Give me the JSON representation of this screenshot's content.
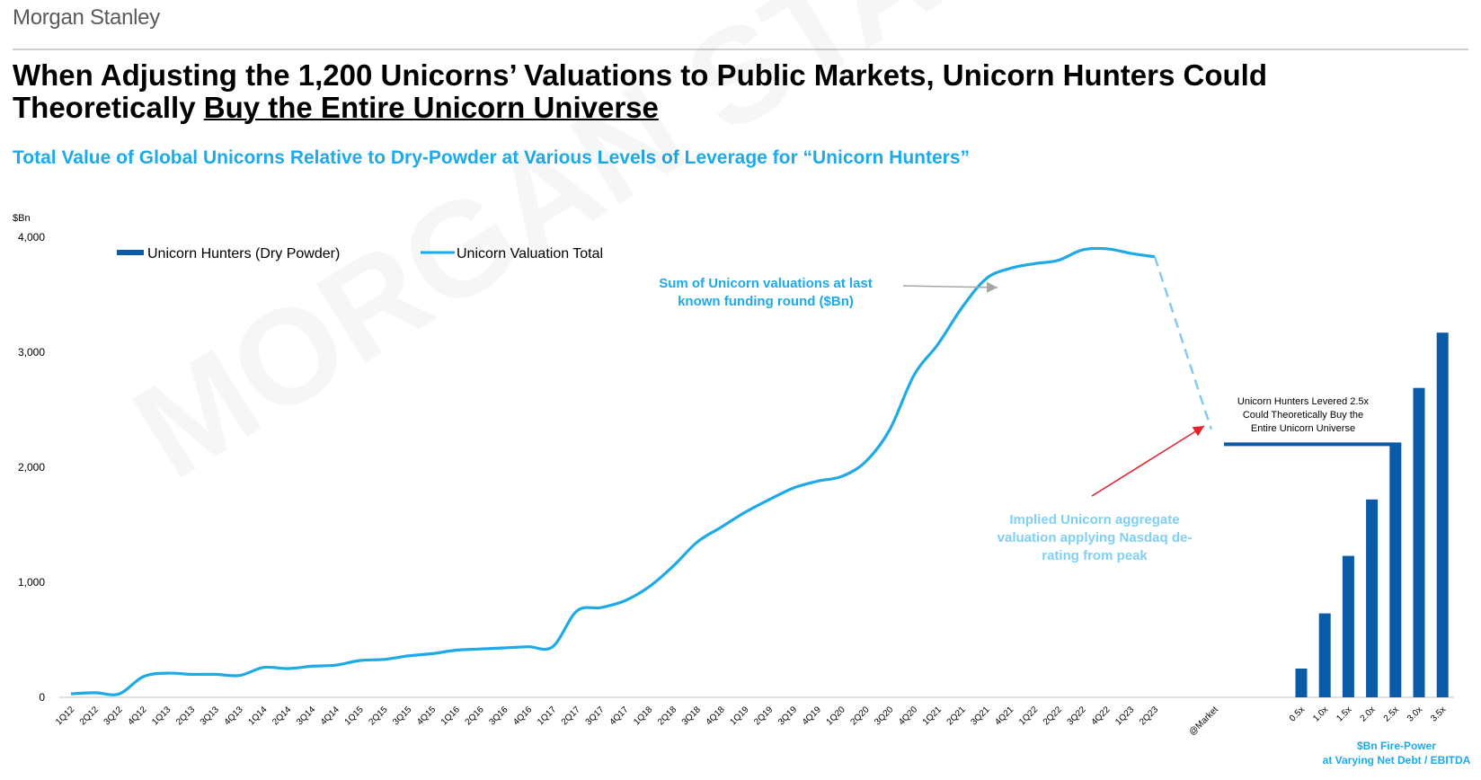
{
  "brand": "Morgan Stanley",
  "title_part1": "When Adjusting the 1,200 Unicorns’ Valuations to Public Markets, Unicorn Hunters Could Theoretically ",
  "title_part2": "Buy the Entire Unicorn Universe",
  "subtitle": "Total Value of Global Unicorns Relative to Dry-Powder at Various Levels of Leverage for “Unicorn Hunters”",
  "watermark": "MORGAN STANLEY",
  "colors": {
    "line": "#1eaae7",
    "bar": "#0a5aa8",
    "dashed": "#7fc8ee",
    "red_arrow": "#e8202a",
    "grey_arrow": "#a6a6a6"
  },
  "chart_data": {
    "type": "line",
    "ylabel": "$Bn",
    "ylim": [
      0,
      4000
    ],
    "yticks": [
      0,
      1000,
      2000,
      3000,
      4000
    ],
    "ytick_labels": [
      "0",
      "1,000",
      "2,000",
      "3,000",
      "4,000"
    ],
    "legend": {
      "bar_label": "Unicorn Hunters (Dry Powder)",
      "line_label": "Unicorn Valuation Total",
      "placement": "top-left"
    },
    "x": [
      "1Q12",
      "2Q12",
      "3Q12",
      "4Q12",
      "1Q13",
      "2Q13",
      "3Q13",
      "4Q13",
      "1Q14",
      "2Q14",
      "3Q14",
      "4Q14",
      "1Q15",
      "2Q15",
      "3Q15",
      "4Q15",
      "1Q16",
      "2Q16",
      "3Q16",
      "4Q16",
      "1Q17",
      "2Q17",
      "3Q17",
      "4Q17",
      "1Q18",
      "2Q18",
      "3Q18",
      "4Q18",
      "1Q19",
      "2Q19",
      "3Q19",
      "4Q19",
      "1Q20",
      "2Q20",
      "3Q20",
      "4Q20",
      "1Q21",
      "2Q21",
      "3Q21",
      "4Q21",
      "1Q22",
      "2Q22",
      "3Q22",
      "4Q22",
      "1Q23",
      "2Q23"
    ],
    "series": [
      {
        "name": "Unicorn Valuation Total",
        "values": [
          30,
          40,
          30,
          180,
          210,
          200,
          200,
          190,
          260,
          250,
          270,
          280,
          320,
          330,
          360,
          380,
          410,
          420,
          430,
          440,
          440,
          750,
          780,
          840,
          960,
          1140,
          1350,
          1480,
          1610,
          1720,
          1820,
          1880,
          1920,
          2050,
          2330,
          2800,
          3070,
          3390,
          3640,
          3730,
          3770,
          3800,
          3890,
          3900,
          3860,
          3830
        ]
      }
    ],
    "market_point": {
      "label": "@Market",
      "value": 2330
    },
    "bars": {
      "name": "Unicorn Hunters (Dry Powder)",
      "categories": [
        "0.5x",
        "1.0x",
        "1.5x",
        "2.0x",
        "2.5x",
        "3.0x",
        "3.5x"
      ],
      "values": [
        250,
        730,
        1230,
        1720,
        2200,
        2690,
        3170
      ]
    },
    "bar_axis_title_1": "$Bn Fire-Power",
    "bar_axis_title_2": "at Varying Net Debt / EBITDA",
    "annotations": {
      "sum_1": "Sum of Unicorn valuations at last",
      "sum_2": "known funding round ($Bn)",
      "implied_1": "Implied Unicorn aggregate",
      "implied_2": "valuation applying Nasdaq de-",
      "implied_3": "rating from peak",
      "levered_1": "Unicorn Hunters Levered 2.5x",
      "levered_2": "Could Theoretically Buy the",
      "levered_3": "Entire Unicorn Universe"
    }
  }
}
